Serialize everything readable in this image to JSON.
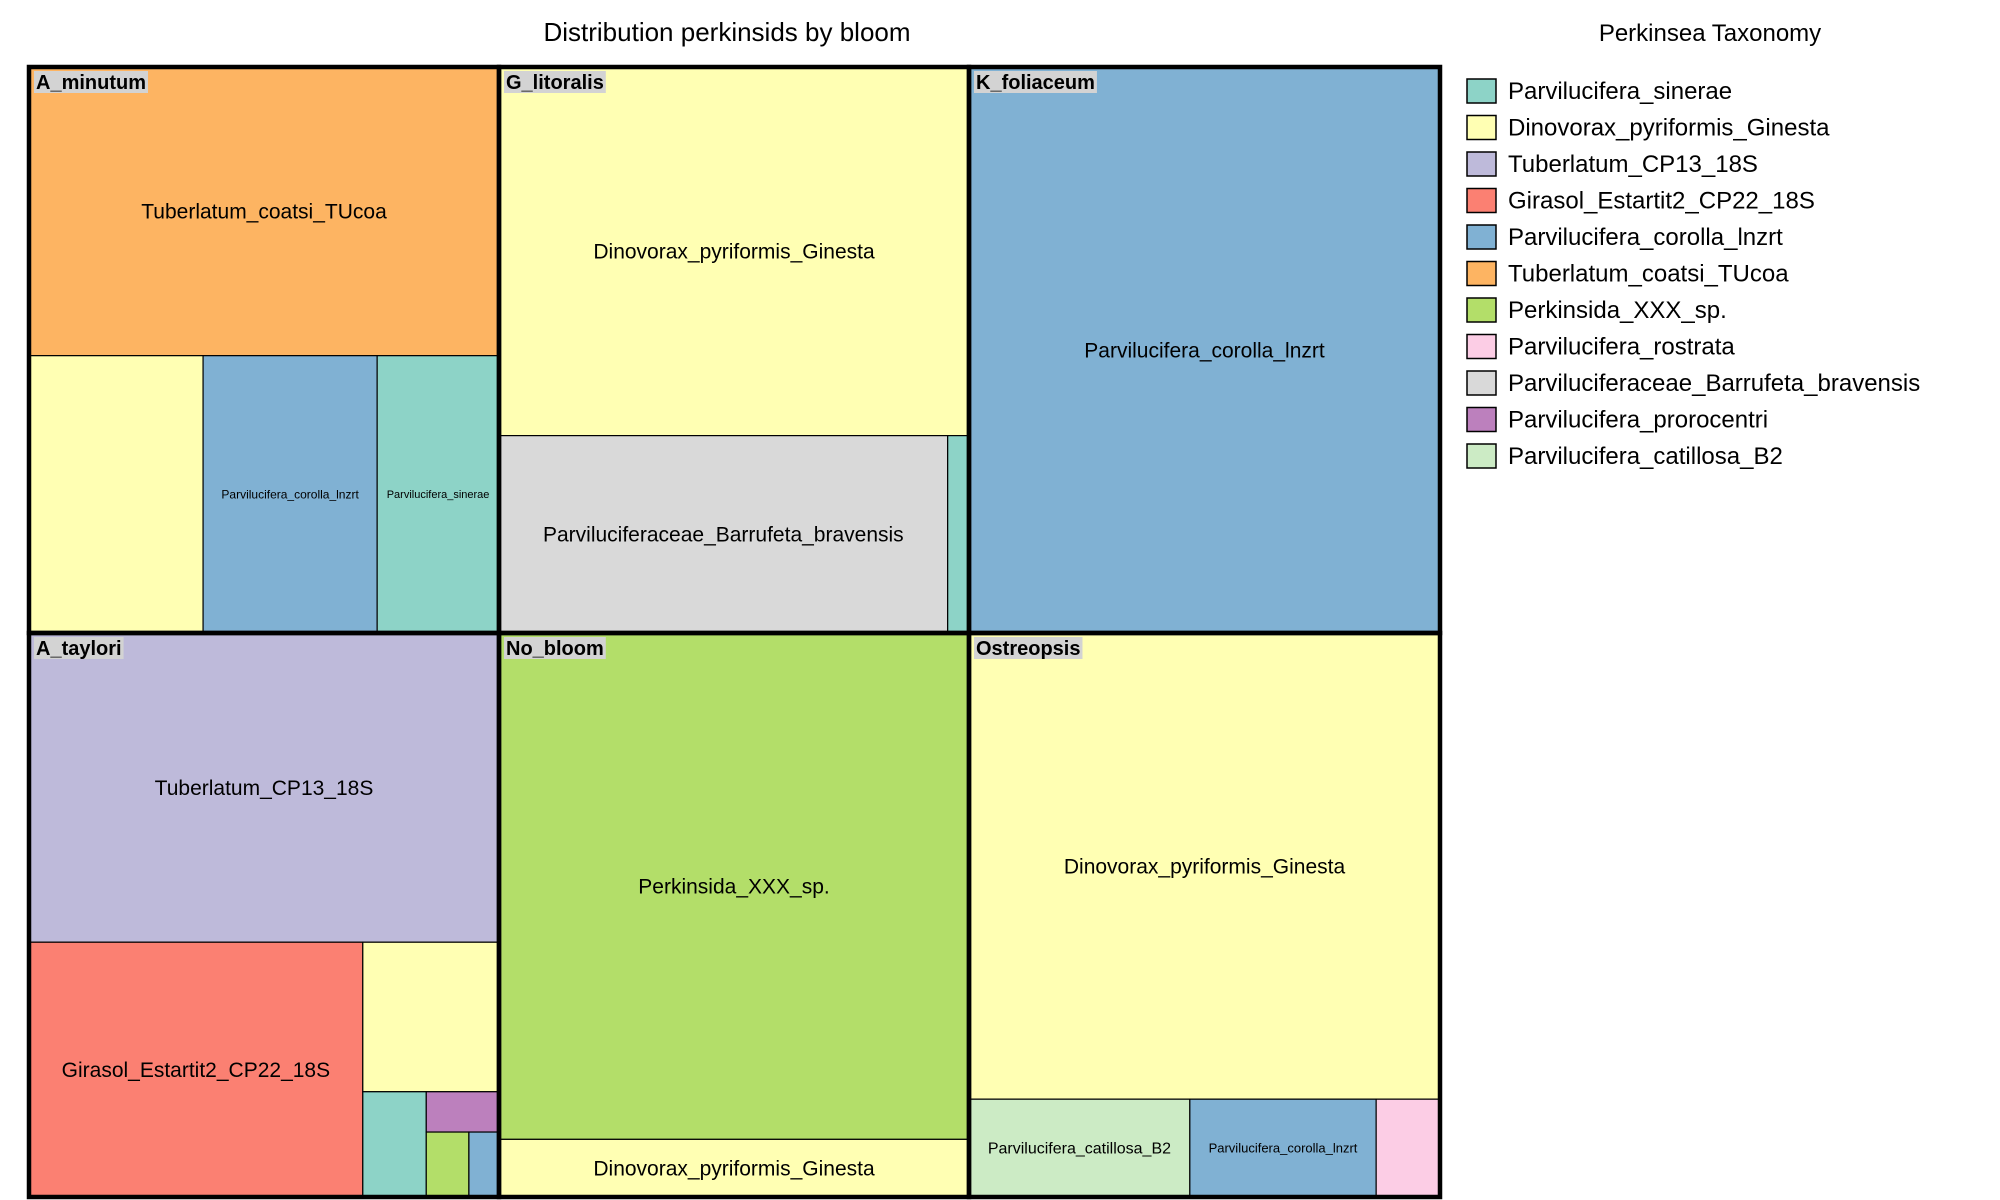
{
  "chart_data": {
    "type": "treemap",
    "title": "Distribution perkinsids by bloom",
    "legend": {
      "title": "Perkinsea Taxonomy",
      "position": "right",
      "entries": [
        {
          "name": "Parvilucifera_sinerae",
          "color": "#8DD3C7"
        },
        {
          "name": "Dinovorax_pyriformis_Ginesta",
          "color": "#FFFFB3"
        },
        {
          "name": "Tuberlatum_CP13_18S",
          "color": "#BEBADA"
        },
        {
          "name": "Girasol_Estartit2_CP22_18S",
          "color": "#FB8072"
        },
        {
          "name": "Parvilucifera_corolla_lnzrt",
          "color": "#80B1D3"
        },
        {
          "name": "Tuberlatum_coatsi_TUcoa",
          "color": "#FDB462"
        },
        {
          "name": "Perkinsida_XXX_sp.",
          "color": "#B3DE69"
        },
        {
          "name": "Parvilucifera_rostrata",
          "color": "#FCCDE5"
        },
        {
          "name": "Parviluciferaceae_Barrufeta_bravensis",
          "color": "#D9D9D9"
        },
        {
          "name": "Parvilucifera_prorocentri",
          "color": "#BC80BD"
        },
        {
          "name": "Parvilucifera_catillosa_B2",
          "color": "#CCEBC5"
        }
      ]
    },
    "groups": [
      {
        "name": "A_minutum",
        "values": [
          {
            "taxon": "Tuberlatum_coatsi_TUcoa",
            "value": 815,
            "label": "Tuberlatum_coatsi_TUcoa"
          },
          {
            "taxon": "Dinovorax_pyriformis_Ginesta",
            "value": 290,
            "label": ""
          },
          {
            "taxon": "Parvilucifera_corolla_lnzrt",
            "value": 290,
            "label": "Parvilucifera_corolla_lnzrt"
          },
          {
            "taxon": "Parvilucifera_sinerae",
            "value": 203,
            "label": "Parvilucifera_sinerae"
          }
        ]
      },
      {
        "name": "G_litoralis",
        "values": [
          {
            "taxon": "Dinovorax_pyriformis_Ginesta",
            "value": 1029,
            "label": "Dinovorax_pyriformis_Ginesta"
          },
          {
            "taxon": "Parviluciferaceae_Barrufeta_bravensis",
            "value": 526,
            "label": "Parviluciferaceae_Barrufeta_bravensis"
          },
          {
            "taxon": "Parvilucifera_sinerae",
            "value": 25,
            "label": ""
          }
        ]
      },
      {
        "name": "K_foliaceum",
        "values": [
          {
            "taxon": "Parvilucifera_corolla_lnzrt",
            "value": 1598,
            "label": "Parvilucifera_corolla_lnzrt"
          }
        ]
      },
      {
        "name": "A_taylori",
        "values": [
          {
            "taxon": "Tuberlatum_CP13_18S",
            "value": 892,
            "label": "Tuberlatum_CP13_18S"
          },
          {
            "taxon": "Girasol_Estartit2_CP22_18S",
            "value": 522,
            "label": "Girasol_Estartit2_CP22_18S"
          },
          {
            "taxon": "Dinovorax_pyriformis_Ginesta",
            "value": 125,
            "label": ""
          },
          {
            "taxon": "Parvilucifera_sinerae",
            "value": 41,
            "label": ""
          },
          {
            "taxon": "Parvilucifera_prorocentri",
            "value": 18,
            "label": ""
          },
          {
            "taxon": "Perkinsida_XXX_sp.",
            "value": 17,
            "label": ""
          },
          {
            "taxon": "Parvilucifera_corolla_lnzrt",
            "value": 12,
            "label": ""
          }
        ]
      },
      {
        "name": "No_bloom",
        "values": [
          {
            "taxon": "Perkinsida_XXX_sp.",
            "value": 1423,
            "label": "Perkinsida_XXX_sp."
          },
          {
            "taxon": "Dinovorax_pyriformis_Ginesta",
            "value": 162,
            "label": "Dinovorax_pyriformis_Ginesta"
          }
        ]
      },
      {
        "name": "Ostreopsis",
        "values": [
          {
            "taxon": "Dinovorax_pyriformis_Ginesta",
            "value": 1301,
            "label": "Dinovorax_pyriformis_Ginesta"
          },
          {
            "taxon": "Parvilucifera_catillosa_B2",
            "value": 128,
            "label": "Parvilucifera_catillosa_B2"
          },
          {
            "taxon": "Parvilucifera_corolla_lnzrt",
            "value": 108,
            "label": "Parvilucifera_corolla_lnzrt"
          },
          {
            "taxon": "Parvilucifera_rostrata",
            "value": 37,
            "label": ""
          }
        ]
      }
    ]
  }
}
